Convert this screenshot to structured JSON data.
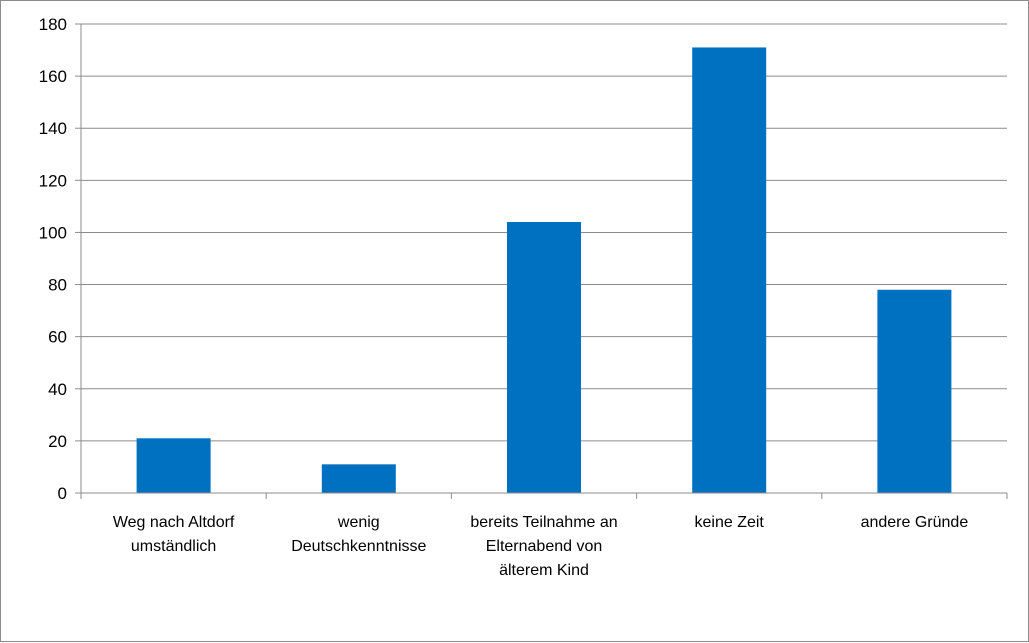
{
  "chart_data": {
    "type": "bar",
    "title": "",
    "xlabel": "",
    "ylabel": "",
    "ylim": [
      0,
      180
    ],
    "yticks": [
      0,
      20,
      40,
      60,
      80,
      100,
      120,
      140,
      160,
      180
    ],
    "grid": true,
    "legend": "none",
    "bar_color": "#0070c0",
    "categories": [
      [
        "Weg nach Altdorf",
        "umständlich"
      ],
      [
        "wenig",
        "Deutschkenntnisse"
      ],
      [
        "bereits Teilnahme an",
        "Elternabend von",
        "älterem Kind"
      ],
      [
        "keine Zeit"
      ],
      [
        "andere Gründe"
      ]
    ],
    "values": [
      21,
      11,
      104,
      171,
      78
    ]
  }
}
